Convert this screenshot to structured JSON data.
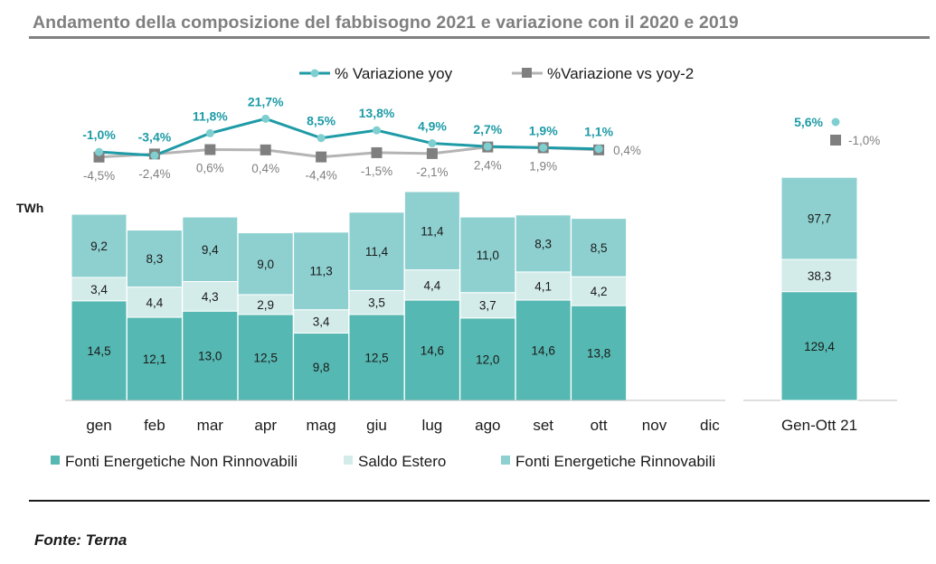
{
  "title": "Andamento della composizione del fabbisogno 2021 e variazione con il 2020 e 2019",
  "source": "Fonte: Terna",
  "chart_data": {
    "type": "bar",
    "stacked": true,
    "unit_label": "TWh",
    "categories": [
      "gen",
      "feb",
      "mar",
      "apr",
      "mag",
      "giu",
      "lug",
      "ago",
      "set",
      "ott",
      "nov",
      "dic"
    ],
    "series": [
      {
        "name": "Fonti Energetiche Non Rinnovabili",
        "color": "#55b8b2",
        "values": [
          14.5,
          12.1,
          13.0,
          12.5,
          9.8,
          12.5,
          14.6,
          12.0,
          14.6,
          13.8,
          null,
          null
        ],
        "labels": [
          "14,5",
          "12,1",
          "13,0",
          "12,5",
          "9,8",
          "12,5",
          "14,6",
          "12,0",
          "14,6",
          "13,8",
          "",
          ""
        ]
      },
      {
        "name": "Saldo Estero",
        "color": "#d3ecea",
        "values": [
          3.4,
          4.4,
          4.3,
          2.9,
          3.4,
          3.5,
          4.4,
          3.7,
          4.1,
          4.2,
          null,
          null
        ],
        "labels": [
          "3,4",
          "4,4",
          "4,3",
          "2,9",
          "3,4",
          "3,5",
          "4,4",
          "3,7",
          "4,1",
          "4,2",
          "",
          ""
        ]
      },
      {
        "name": "Fonti Energetiche Rinnovabili",
        "color": "#8ed0d0",
        "values": [
          9.2,
          8.3,
          9.4,
          9.0,
          11.3,
          11.4,
          11.4,
          11.0,
          8.3,
          8.5,
          null,
          null
        ],
        "labels": [
          "9,2",
          "8,3",
          "9,4",
          "9,0",
          "11,3",
          "11,4",
          "11,4",
          "11,0",
          "8,3",
          "8,5",
          "",
          ""
        ]
      }
    ],
    "lines": [
      {
        "name": "% Variazione yoy",
        "color": "#1e9ba6",
        "values": [
          -1.0,
          -3.4,
          11.8,
          21.7,
          8.5,
          13.8,
          4.9,
          2.7,
          1.9,
          1.1,
          null,
          null
        ],
        "labels": [
          "-1,0%",
          "-3,4%",
          "11,8%",
          "21,7%",
          "8,5%",
          "13,8%",
          "4,9%",
          "2,7%",
          "1,9%",
          "1,1%",
          "",
          ""
        ]
      },
      {
        "name": "%Variazione vs yoy-2",
        "color": "#b4b4b4",
        "values": [
          -4.5,
          -2.4,
          0.6,
          0.4,
          -4.4,
          -1.5,
          -2.1,
          2.4,
          1.9,
          0.4,
          null,
          null
        ],
        "labels": [
          "-4,5%",
          "-2,4%",
          "0,6%",
          "0,4%",
          "-4,4%",
          "-1,5%",
          "-2,1%",
          "2,4%",
          "1,9%",
          "0,4%",
          "",
          ""
        ]
      }
    ],
    "total": {
      "category": "Gen-Ott 21",
      "values": [
        129.4,
        38.3,
        97.7
      ],
      "labels": [
        "129,4",
        "38,3",
        "97,7"
      ],
      "yoy": 5.6,
      "yoy_label": "5,6%",
      "yoy2": -1.0,
      "yoy2_label": "-1,0%"
    },
    "legend_position": "top (lines) / bottom (bars)"
  }
}
